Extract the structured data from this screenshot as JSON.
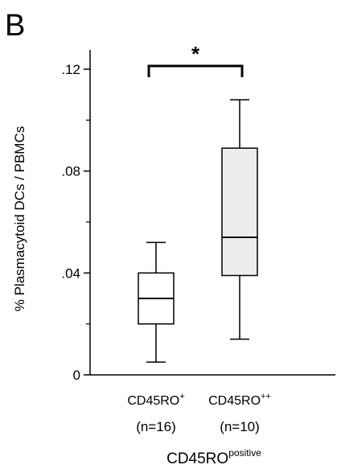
{
  "panel_label": "B",
  "chart_data": {
    "type": "box",
    "title": "",
    "ylabel": "% Plasmacytoid DCs / PBMCs",
    "xlabel": "CD45RO",
    "xlabel_sup": "positive",
    "ylim": [
      0,
      0.12
    ],
    "yticks": [
      0,
      0.04,
      0.08,
      0.12
    ],
    "ytick_labels": [
      "0",
      ".04",
      ".08",
      ".12"
    ],
    "minor_ytick_step": 0.02,
    "grid": false,
    "series": [
      {
        "label": "CD45RO",
        "label_sup": "+",
        "n_label": "(n=16)",
        "whisker_low": 0.005,
        "q1": 0.02,
        "median": 0.03,
        "q3": 0.04,
        "whisker_high": 0.052,
        "fill": "#ffffff"
      },
      {
        "label": "CD45RO",
        "label_sup": "++",
        "n_label": "(n=10)",
        "whisker_low": 0.014,
        "q1": 0.039,
        "median": 0.054,
        "q3": 0.089,
        "whisker_high": 0.108,
        "fill": "#ececec"
      }
    ],
    "significance": {
      "between": [
        0,
        1
      ],
      "label": "*"
    }
  }
}
